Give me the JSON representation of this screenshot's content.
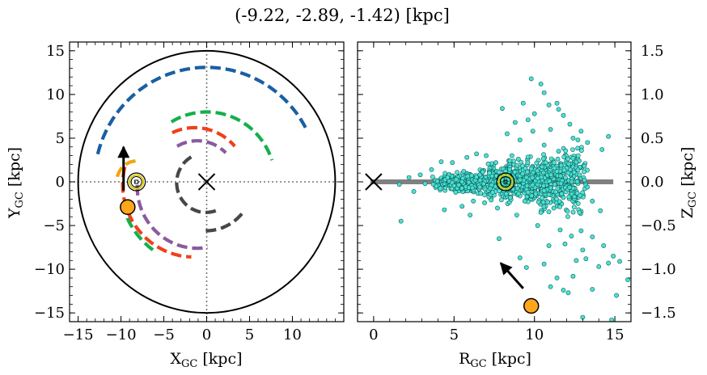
{
  "figure_title": "(-9.22, -2.89, -1.42) [kpc]",
  "colors": {
    "spiral_blue": "#1a5fa3",
    "spiral_green": "#13b04b",
    "spiral_red": "#f0401a",
    "spiral_purple": "#8a5a9e",
    "spiral_gray": "#474747",
    "spiral_orange": "#f2a60c",
    "marker_orange": "#ffa61a",
    "sun_yellow": "#d9cc00",
    "star_cyan": "#4ae2d4",
    "plane_gray": "#808080"
  },
  "chart_data": [
    {
      "type": "line",
      "panel": "left",
      "title": "",
      "xlabel_main": "X",
      "xlabel_sub": "GC",
      "xlabel_unit": " [kpc]",
      "ylabel_main": "Y",
      "ylabel_sub": "GC",
      "ylabel_unit": " [kpc]",
      "xlim": [
        -16,
        16
      ],
      "ylim": [
        -16,
        16
      ],
      "xticks": [
        -15,
        -10,
        -5,
        0,
        5,
        10
      ],
      "yticks": [
        -15,
        -10,
        -5,
        0,
        5,
        10,
        15
      ],
      "xtick_labels": [
        "−15",
        "−10",
        "−5",
        "0",
        "5",
        "10"
      ],
      "ytick_labels": [
        "−15",
        "−10",
        "−5",
        "0",
        "5",
        "10",
        "15"
      ],
      "boundary_circle_radius": 15,
      "galactic_center": [
        0,
        0
      ],
      "sun_position": [
        -8.2,
        0
      ],
      "object_position": [
        -9.22,
        -2.89
      ],
      "velocity_arrow": {
        "from": [
          -9.7,
          -1.0
        ],
        "to": [
          -9.7,
          4.0
        ]
      },
      "series": [
        {
          "color_key": "spiral_blue",
          "arc": {
            "center": [
              0,
              0
            ],
            "radius": 13.1,
            "angle_start_deg": 166,
            "angle_end_deg": 26
          }
        },
        {
          "color_key": "spiral_green",
          "arc": {
            "center": [
              0,
              0
            ],
            "radius": 8.0,
            "angle_start_deg": 121,
            "angle_end_deg": 18
          }
        },
        {
          "color_key": "spiral_green",
          "arc": {
            "center": [
              -0.5,
              0
            ],
            "radius": 9.7,
            "angle_start_deg": 195,
            "angle_end_deg": 236
          }
        },
        {
          "color_key": "spiral_red",
          "arc": {
            "center": [
              -1.4,
              0
            ],
            "radius": 6.2,
            "angle_start_deg": 115,
            "angle_end_deg": 41
          }
        },
        {
          "color_key": "spiral_red",
          "arc": {
            "center": [
              -1.5,
              -0.3
            ],
            "radius": 8.3,
            "angle_start_deg": 166,
            "angle_end_deg": 268
          }
        },
        {
          "color_key": "spiral_purple",
          "arc": {
            "center": [
              -1.1,
              0
            ],
            "radius": 4.7,
            "angle_start_deg": 120,
            "angle_end_deg": 45
          }
        },
        {
          "color_key": "spiral_purple",
          "arc": {
            "center": [
              -1.1,
              -0.6
            ],
            "radius": 7.0,
            "angle_start_deg": 178,
            "angle_end_deg": 280
          }
        },
        {
          "color_key": "spiral_gray",
          "arc": {
            "center": [
              -0.1,
              -0.1
            ],
            "radius": 3.4,
            "angle_start_deg": 120,
            "angle_end_deg": 290
          }
        },
        {
          "color_key": "spiral_gray",
          "arc": {
            "center": [
              -0.1,
              -0.1
            ],
            "radius": 5.5,
            "angle_start_deg": 270,
            "angle_end_deg": 320
          }
        },
        {
          "color_key": "spiral_orange",
          "arc": {
            "center": [
              -8.1,
              0
            ],
            "radius": 2.4,
            "angle_start_deg": 95,
            "angle_end_deg": 180
          }
        }
      ]
    },
    {
      "type": "scatter",
      "panel": "right",
      "title": "",
      "xlabel_main": "R",
      "xlabel_sub": "GC",
      "xlabel_unit": " [kpc]",
      "ylabel_main": "Z",
      "ylabel_sub": "GC",
      "ylabel_unit": " [kpc]",
      "xlim": [
        -1,
        16
      ],
      "ylim": [
        -1.6,
        1.6
      ],
      "xticks": [
        0,
        5,
        10,
        15
      ],
      "yticks": [
        -1.5,
        -1.0,
        -0.5,
        0.0,
        0.5,
        1.0,
        1.5
      ],
      "xtick_labels": [
        "0",
        "5",
        "10",
        "15"
      ],
      "ytick_labels": [
        "−1.5",
        "−1.0",
        "−0.5",
        "0.0",
        "0.5",
        "1.0",
        "1.5"
      ],
      "galactic_plane": {
        "x": [
          -0.2,
          14.9
        ],
        "y": 0
      },
      "galactic_center": [
        0,
        0
      ],
      "sun_position": [
        8.2,
        0
      ],
      "object_position": [
        9.8,
        -1.42
      ],
      "velocity_arrow": {
        "from": [
          9.3,
          -1.22
        ],
        "to": [
          7.9,
          -0.93
        ]
      },
      "series": [
        {
          "name": "",
          "color_key": "star_cyan",
          "points": [
            [
              9.8,
              1.18
            ],
            [
              10.4,
              1.12
            ],
            [
              10.6,
              1.02
            ],
            [
              11.4,
              0.9
            ],
            [
              11.5,
              0.83
            ],
            [
              10.9,
              0.88
            ],
            [
              8.0,
              0.84
            ],
            [
              11.8,
              0.76
            ],
            [
              12.2,
              0.66
            ],
            [
              12.9,
              0.58
            ],
            [
              14.2,
              0.37
            ],
            [
              9.6,
              0.71
            ],
            [
              13.3,
              0.45
            ],
            [
              12.7,
              0.48
            ],
            [
              14.6,
              0.52
            ],
            [
              6.4,
              0.32
            ],
            [
              5.8,
              0.28
            ],
            [
              4.9,
              0.22
            ],
            [
              4.2,
              0.23
            ],
            [
              3.6,
              0.14
            ],
            [
              2.9,
              0.08
            ],
            [
              2.2,
              0.05
            ],
            [
              1.6,
              -0.03
            ],
            [
              1.7,
              -0.45
            ],
            [
              4.4,
              -0.32
            ],
            [
              5.5,
              -0.28
            ],
            [
              6.0,
              -0.38
            ],
            [
              7.8,
              -0.65
            ],
            [
              10.2,
              -0.5
            ],
            [
              11.6,
              -0.55
            ],
            [
              12.3,
              -0.62
            ],
            [
              12.9,
              -0.56
            ],
            [
              13.6,
              -0.63
            ],
            [
              13.0,
              -0.78
            ],
            [
              13.2,
              -0.88
            ],
            [
              12.6,
              -0.9
            ],
            [
              14.3,
              -0.73
            ],
            [
              14.9,
              -0.85
            ],
            [
              15.3,
              -0.91
            ],
            [
              14.6,
              -0.93
            ],
            [
              14.0,
              -0.97
            ],
            [
              15.8,
              -1.12
            ],
            [
              15.1,
              -1.3
            ],
            [
              13.6,
              -1.23
            ],
            [
              12.4,
              -1.08
            ],
            [
              11.4,
              -1.1
            ],
            [
              11.0,
              -1.2
            ],
            [
              11.8,
              -1.24
            ],
            [
              14.8,
              -1.58
            ],
            [
              13.0,
              -1.55
            ],
            [
              12.1,
              -1.27
            ],
            [
              10.6,
              -0.94
            ],
            [
              9.1,
              -0.87
            ],
            [
              9.5,
              -0.98
            ],
            [
              10.9,
              -0.73
            ],
            [
              11.9,
              -0.71
            ],
            [
              12.8,
              -0.35
            ],
            [
              13.6,
              -0.22
            ],
            [
              14.1,
              -0.33
            ],
            [
              13.1,
              0.18
            ],
            [
              12.4,
              0.27
            ],
            [
              11.5,
              0.35
            ],
            [
              10.6,
              0.42
            ],
            [
              9.9,
              0.58
            ],
            [
              9.1,
              0.48
            ],
            [
              8.6,
              0.3
            ],
            [
              7.6,
              0.22
            ],
            [
              7.0,
              0.3
            ],
            [
              7.7,
              -0.3
            ],
            [
              8.9,
              -0.38
            ],
            [
              9.4,
              -0.22
            ],
            [
              10.4,
              -0.35
            ],
            [
              11.2,
              -0.3
            ],
            [
              11.8,
              -0.18
            ],
            [
              12.1,
              0.1
            ],
            [
              12.8,
              0.08
            ],
            [
              13.3,
              -0.06
            ],
            [
              5.1,
              -0.12
            ],
            [
              6.2,
              -0.22
            ],
            [
              6.6,
              -0.06
            ],
            [
              7.2,
              0.1
            ],
            [
              5.6,
              0.12
            ],
            [
              3.9,
              -0.05
            ],
            [
              3.2,
              -0.02
            ],
            [
              4.6,
              0.05
            ],
            [
              2.5,
              -0.11
            ],
            [
              9.3,
              0.9
            ],
            [
              10.0,
              0.78
            ],
            [
              11.0,
              0.6
            ],
            [
              12.4,
              0.5
            ],
            [
              8.3,
              0.55
            ],
            [
              8.8,
              0.68
            ],
            [
              10.7,
              0.22
            ],
            [
              9.8,
              0.15
            ],
            [
              9.6,
              -0.12
            ],
            [
              10.6,
              -0.1
            ],
            [
              11.4,
              0.12
            ],
            [
              8.2,
              0.12
            ],
            [
              7.4,
              -0.12
            ],
            [
              8.5,
              -0.18
            ],
            [
              6.9,
              -0.24
            ],
            [
              9.0,
              0.26
            ],
            [
              10.2,
              0.04
            ]
          ]
        }
      ]
    }
  ]
}
